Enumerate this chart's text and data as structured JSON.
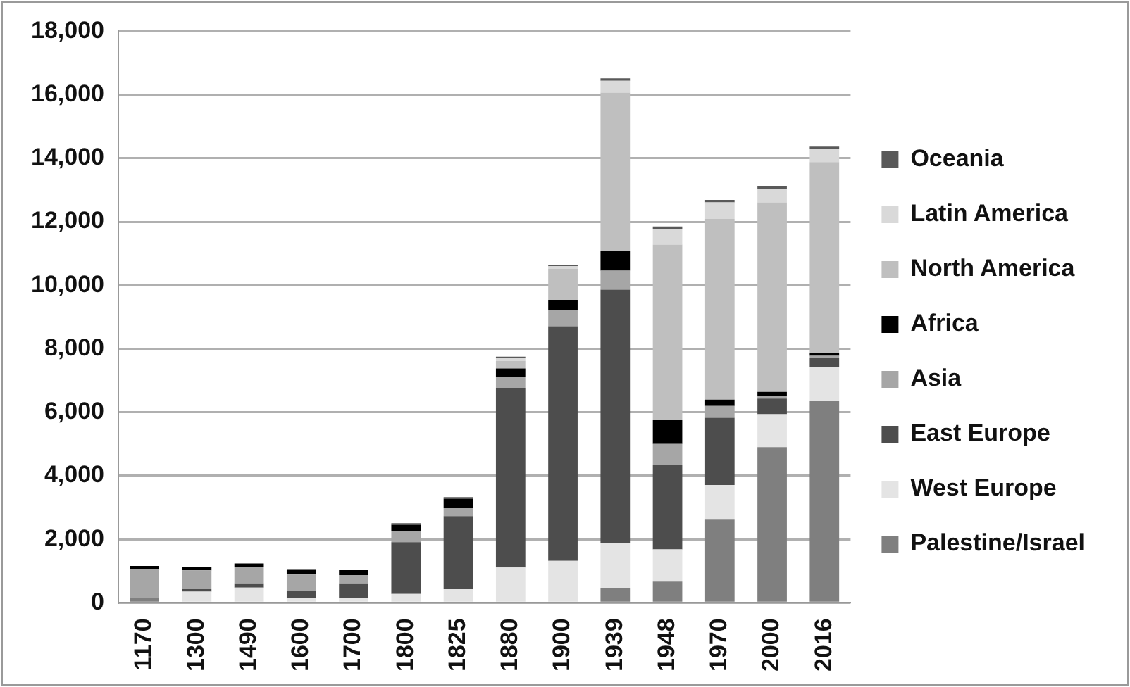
{
  "chart_data": {
    "type": "bar",
    "stacked": true,
    "categories": [
      "1170",
      "1300",
      "1490",
      "1600",
      "1700",
      "1800",
      "1825",
      "1880",
      "1900",
      "1939",
      "1948",
      "1970",
      "2000",
      "2016"
    ],
    "series": [
      {
        "name": "Palestine/Israel",
        "color": "#7f7f7f",
        "values": [
          150,
          0,
          0,
          0,
          0,
          0,
          0,
          0,
          0,
          470,
          670,
          2620,
          4900,
          6360
        ]
      },
      {
        "name": "West Europe",
        "color": "#e4e4e4",
        "values": [
          0,
          350,
          480,
          150,
          150,
          280,
          430,
          1110,
          1320,
          1420,
          1010,
          1090,
          1040,
          1060
        ]
      },
      {
        "name": "East Europe",
        "color": "#4d4d4d",
        "values": [
          0,
          80,
          130,
          210,
          460,
          1630,
          2300,
          5660,
          7390,
          7970,
          2650,
          2120,
          490,
          280
        ]
      },
      {
        "name": "Asia",
        "color": "#a6a6a6",
        "values": [
          900,
          590,
          530,
          530,
          260,
          350,
          250,
          330,
          500,
          600,
          670,
          370,
          80,
          80
        ]
      },
      {
        "name": "Africa",
        "color": "#000000",
        "values": [
          110,
          110,
          100,
          150,
          160,
          200,
          300,
          280,
          330,
          630,
          750,
          200,
          130,
          80
        ]
      },
      {
        "name": "North America",
        "color": "#bfbfbf",
        "values": [
          0,
          0,
          0,
          0,
          0,
          0,
          0,
          240,
          980,
          4980,
          5530,
          5690,
          5970,
          6020
        ]
      },
      {
        "name": "Latin America",
        "color": "#d9d9d9",
        "values": [
          0,
          0,
          0,
          0,
          0,
          0,
          0,
          80,
          80,
          370,
          490,
          520,
          420,
          410
        ]
      },
      {
        "name": "Oceania",
        "color": "#595959",
        "values": [
          0,
          0,
          0,
          0,
          0,
          50,
          50,
          50,
          50,
          80,
          80,
          80,
          100,
          80
        ]
      }
    ],
    "ylim": [
      0,
      18000
    ],
    "yticks": [
      0,
      {
        "value": 2000,
        "label": "2,000"
      },
      {
        "value": 4000,
        "label": "4,000"
      },
      {
        "value": 6000,
        "label": "6,000"
      },
      {
        "value": 8000,
        "label": "8,000"
      },
      {
        "value": 10000,
        "label": "10,000"
      },
      {
        "value": 12000,
        "label": "12,000"
      },
      {
        "value": 14000,
        "label": "14,000"
      },
      {
        "value": 16000,
        "label": "16,000"
      },
      {
        "value": 18000,
        "label": "18,000"
      }
    ],
    "grid": "y",
    "legend": "right"
  }
}
